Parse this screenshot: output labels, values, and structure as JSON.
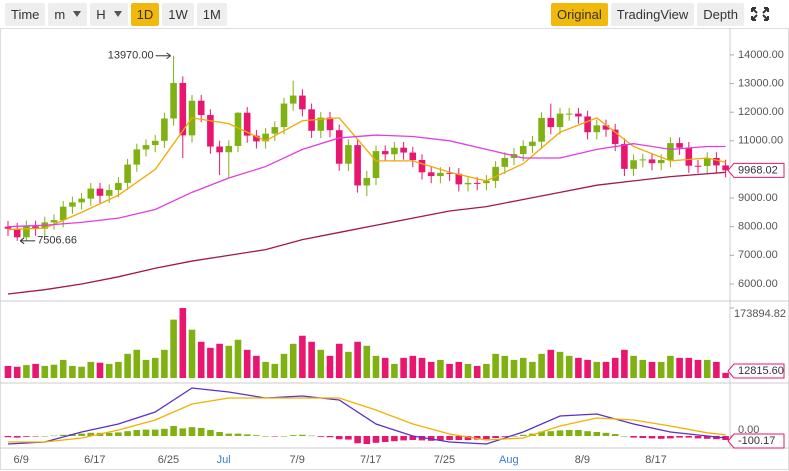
{
  "toolbar": {
    "left": [
      "Time",
      "m",
      "H",
      "1D",
      "1W",
      "1M"
    ],
    "right": [
      "Original",
      "TradingView",
      "Depth"
    ],
    "active_left": 3,
    "active_right": 0,
    "dropdowns": [
      1,
      2
    ],
    "active_color": "#f0b90b"
  },
  "chart_data": {
    "type": "candlestick",
    "categories": [
      null,
      "6/9",
      null,
      null,
      null,
      null,
      null,
      null,
      null,
      "6/17",
      null,
      null,
      null,
      null,
      null,
      null,
      null,
      "6/25",
      null,
      null,
      null,
      null,
      null,
      "Jul",
      null,
      null,
      null,
      null,
      null,
      null,
      null,
      "7/9",
      null,
      null,
      null,
      null,
      null,
      null,
      null,
      "7/17",
      null,
      null,
      null,
      null,
      null,
      null,
      null,
      "7/25",
      null,
      null,
      null,
      null,
      null,
      null,
      "Aug",
      null,
      null,
      null,
      null,
      null,
      null,
      null,
      "8/9",
      null,
      null,
      null,
      null,
      null,
      null,
      null,
      "8/17",
      null,
      null,
      null,
      null,
      null,
      null,
      null,
      null
    ],
    "month_label_color": "#3c78d8",
    "colors": {
      "up": "#7fb112",
      "down": "#e8166f"
    },
    "ohlc": {
      "open": [
        8000,
        7930,
        7630,
        8010,
        7930,
        8150,
        8230,
        8700,
        8850,
        8980,
        9330,
        9080,
        9280,
        9530,
        10170,
        10700,
        10850,
        11000,
        11780,
        13020,
        11190,
        12400,
        11900,
        10800,
        10600,
        10820,
        11980,
        11180,
        10980,
        11250,
        11480,
        12300,
        12580,
        12100,
        11350,
        11810,
        11370,
        10200,
        10850,
        9440,
        9700,
        10640,
        10530,
        10760,
        10590,
        10330,
        9900,
        9770,
        9880,
        9850,
        9480,
        9530,
        9520,
        9600,
        10090,
        10400,
        10540,
        10820,
        10970,
        11800,
        11480,
        11950,
        11950,
        11850,
        11300,
        11540,
        11390,
        10890,
        10020,
        10320,
        10350,
        10220,
        10330,
        10920,
        10760,
        10130,
        10120,
        10400,
        10140
      ],
      "high": [
        8200,
        8130,
        8210,
        8210,
        8350,
        8430,
        8900,
        9050,
        9180,
        9530,
        9530,
        9480,
        9730,
        10370,
        10900,
        11050,
        11200,
        11980,
        13970,
        13250,
        12600,
        12600,
        12100,
        11000,
        11020,
        12000,
        12180,
        11380,
        11450,
        11680,
        12500,
        13100,
        12800,
        12300,
        12000,
        12010,
        11570,
        11050,
        11050,
        9950,
        10840,
        10840,
        10960,
        10960,
        10790,
        10530,
        10100,
        10080,
        10080,
        10050,
        9730,
        9730,
        9800,
        10290,
        10600,
        10740,
        11020,
        11170,
        12000,
        12300,
        12150,
        12150,
        12150,
        12050,
        11740,
        11740,
        11590,
        11090,
        10520,
        10550,
        10550,
        10530,
        11120,
        11120,
        10960,
        10330,
        10600,
        10600,
        10340
      ],
      "low": [
        7680,
        7506.66,
        7520,
        7680,
        7680,
        7900,
        7980,
        8450,
        8600,
        8730,
        8830,
        8830,
        9030,
        9280,
        9920,
        10450,
        10600,
        10750,
        11530,
        10400,
        10940,
        11650,
        10550,
        9800,
        9700,
        10600,
        10930,
        10730,
        10730,
        11000,
        11230,
        12050,
        11850,
        11100,
        11100,
        11120,
        9950,
        9950,
        9190,
        9070,
        9450,
        10280,
        10280,
        10340,
        10080,
        9650,
        9520,
        9520,
        9600,
        9230,
        9230,
        9270,
        9270,
        9350,
        9840,
        10150,
        10290,
        10570,
        10720,
        11230,
        11230,
        11700,
        11600,
        11050,
        11050,
        11140,
        10640,
        9770,
        9770,
        10070,
        9970,
        9970,
        10080,
        10510,
        9880,
        9870,
        9870,
        9890,
        9720
      ],
      "close": [
        7930,
        7630,
        8010,
        7930,
        8150,
        8230,
        8700,
        8850,
        8980,
        9330,
        9080,
        9280,
        9530,
        10170,
        10700,
        10850,
        11000,
        11780,
        13020,
        11190,
        12400,
        11900,
        10800,
        10600,
        10820,
        11980,
        11180,
        10980,
        11250,
        11480,
        12300,
        12580,
        12100,
        11350,
        11810,
        11370,
        10200,
        10850,
        9440,
        9700,
        10640,
        10530,
        10760,
        10590,
        10330,
        9900,
        9770,
        9880,
        9850,
        9480,
        9530,
        9520,
        9600,
        10090,
        10400,
        10540,
        10820,
        10970,
        11800,
        11480,
        11950,
        11950,
        11850,
        11300,
        11540,
        11390,
        10890,
        10020,
        10320,
        10350,
        10220,
        10330,
        10920,
        10760,
        10130,
        10120,
        10400,
        10140,
        9968.02
      ]
    },
    "ylim": [
      5440,
      14940
    ],
    "yticks": [
      {
        "value": 6000,
        "label": "6000.00"
      },
      {
        "value": 7000,
        "label": "7000.00"
      },
      {
        "value": 8000,
        "label": "8000.00"
      },
      {
        "value": 9000,
        "label": "9000.00"
      },
      {
        "value": 10000,
        "label": "10000.00"
      },
      {
        "value": 11000,
        "label": "11000.00"
      },
      {
        "value": 12000,
        "label": "12000.00"
      },
      {
        "value": 13000,
        "label": "13000.00"
      },
      {
        "value": 14000,
        "label": "14000.00"
      }
    ],
    "lines": [
      {
        "color": "#f2a900",
        "x": [
          0,
          4,
          8,
          12,
          16,
          20,
          24,
          28,
          32,
          36,
          40,
          44,
          48,
          52,
          56,
          60,
          64,
          68,
          72,
          76,
          78
        ],
        "values": [
          7900,
          7950,
          8500,
          9100,
          10000,
          11800,
          11600,
          11000,
          11700,
          11800,
          10300,
          10300,
          9900,
          9600,
          10200,
          11300,
          11800,
          10800,
          10300,
          10400,
          10250
        ]
      },
      {
        "color": "#e03ee0",
        "x": [
          0,
          4,
          8,
          12,
          16,
          20,
          24,
          28,
          32,
          36,
          40,
          44,
          48,
          52,
          56,
          60,
          64,
          68,
          72,
          76,
          78
        ],
        "values": [
          8000,
          8050,
          8150,
          8300,
          8600,
          9200,
          9700,
          10100,
          10700,
          11100,
          11200,
          11150,
          11000,
          10700,
          10400,
          10400,
          10700,
          10900,
          10700,
          10800,
          10800
        ]
      },
      {
        "color": "#a3164f",
        "x": [
          0,
          4,
          8,
          12,
          16,
          20,
          24,
          28,
          32,
          36,
          40,
          44,
          48,
          52,
          56,
          60,
          64,
          68,
          72,
          76,
          78
        ],
        "values": [
          5650,
          5800,
          6000,
          6250,
          6550,
          6800,
          7000,
          7200,
          7550,
          7800,
          8050,
          8300,
          8550,
          8700,
          8950,
          9200,
          9450,
          9600,
          9750,
          9850,
          9900
        ]
      }
    ],
    "annotations": [
      {
        "label": "13970.00",
        "value": 13970,
        "at": 18
      },
      {
        "label": "7506.66",
        "value": 7506.66,
        "at": 1
      }
    ],
    "volume": {
      "values": [
        30000,
        28000,
        32000,
        35000,
        30000,
        33000,
        45000,
        30000,
        28000,
        40000,
        38000,
        35000,
        40000,
        60000,
        70000,
        45000,
        50000,
        70000,
        145000,
        173894.82,
        120000,
        90000,
        75000,
        85000,
        80000,
        95000,
        70000,
        55000,
        40000,
        35000,
        60000,
        85000,
        105000,
        90000,
        70000,
        55000,
        85000,
        65000,
        90000,
        80000,
        55000,
        50000,
        35000,
        50000,
        55000,
        50000,
        40000,
        45000,
        35000,
        40000,
        35000,
        30000,
        35000,
        60000,
        55000,
        45000,
        50000,
        40000,
        60000,
        70000,
        65000,
        55000,
        50000,
        45000,
        40000,
        40000,
        50000,
        70000,
        55000,
        45000,
        40000,
        40000,
        55000,
        50000,
        50000,
        45000,
        45000,
        40000,
        12815.6
      ],
      "last_label": "12815.60",
      "ylim": [
        0,
        173894.82
      ],
      "yticks": [
        173894.82
      ]
    },
    "macd": {
      "histogram": [
        -30,
        -40,
        -20,
        -10,
        0,
        10,
        30,
        50,
        60,
        80,
        80,
        80,
        90,
        120,
        150,
        160,
        160,
        180,
        250,
        190,
        220,
        200,
        150,
        100,
        60,
        60,
        40,
        20,
        0,
        -10,
        0,
        20,
        30,
        10,
        -20,
        -30,
        -80,
        -90,
        -180,
        -200,
        -170,
        -150,
        -130,
        -110,
        -100,
        -110,
        -120,
        -110,
        -100,
        -100,
        -100,
        -90,
        -80,
        -50,
        -20,
        0,
        30,
        60,
        110,
        120,
        140,
        150,
        150,
        120,
        100,
        80,
        50,
        0,
        -40,
        -50,
        -60,
        -70,
        -60,
        -40,
        -40,
        -60,
        -70,
        -80,
        -100.17
      ],
      "ylim": [
        -300,
        1300
      ],
      "yticks": [
        {
          "value": 0,
          "label": "0.00"
        }
      ],
      "lines": [
        {
          "color": "#5b2fc9",
          "x": [
            0,
            4,
            8,
            12,
            16,
            20,
            24,
            28,
            32,
            36,
            40,
            44,
            48,
            52,
            56,
            60,
            64,
            68,
            72,
            76,
            78
          ],
          "values": [
            -200,
            -150,
            100,
            300,
            600,
            1200,
            1100,
            950,
            1000,
            900,
            300,
            0,
            -150,
            -200,
            100,
            500,
            550,
            300,
            100,
            0,
            -50
          ]
        },
        {
          "color": "#f2b000",
          "x": [
            0,
            4,
            8,
            12,
            16,
            20,
            24,
            28,
            32,
            36,
            40,
            44,
            48,
            52,
            56,
            60,
            64,
            68,
            72,
            76,
            78
          ],
          "values": [
            -150,
            -150,
            -50,
            150,
            400,
            800,
            950,
            950,
            950,
            950,
            650,
            300,
            50,
            -100,
            -50,
            250,
            450,
            400,
            250,
            80,
            30
          ]
        }
      ]
    }
  }
}
